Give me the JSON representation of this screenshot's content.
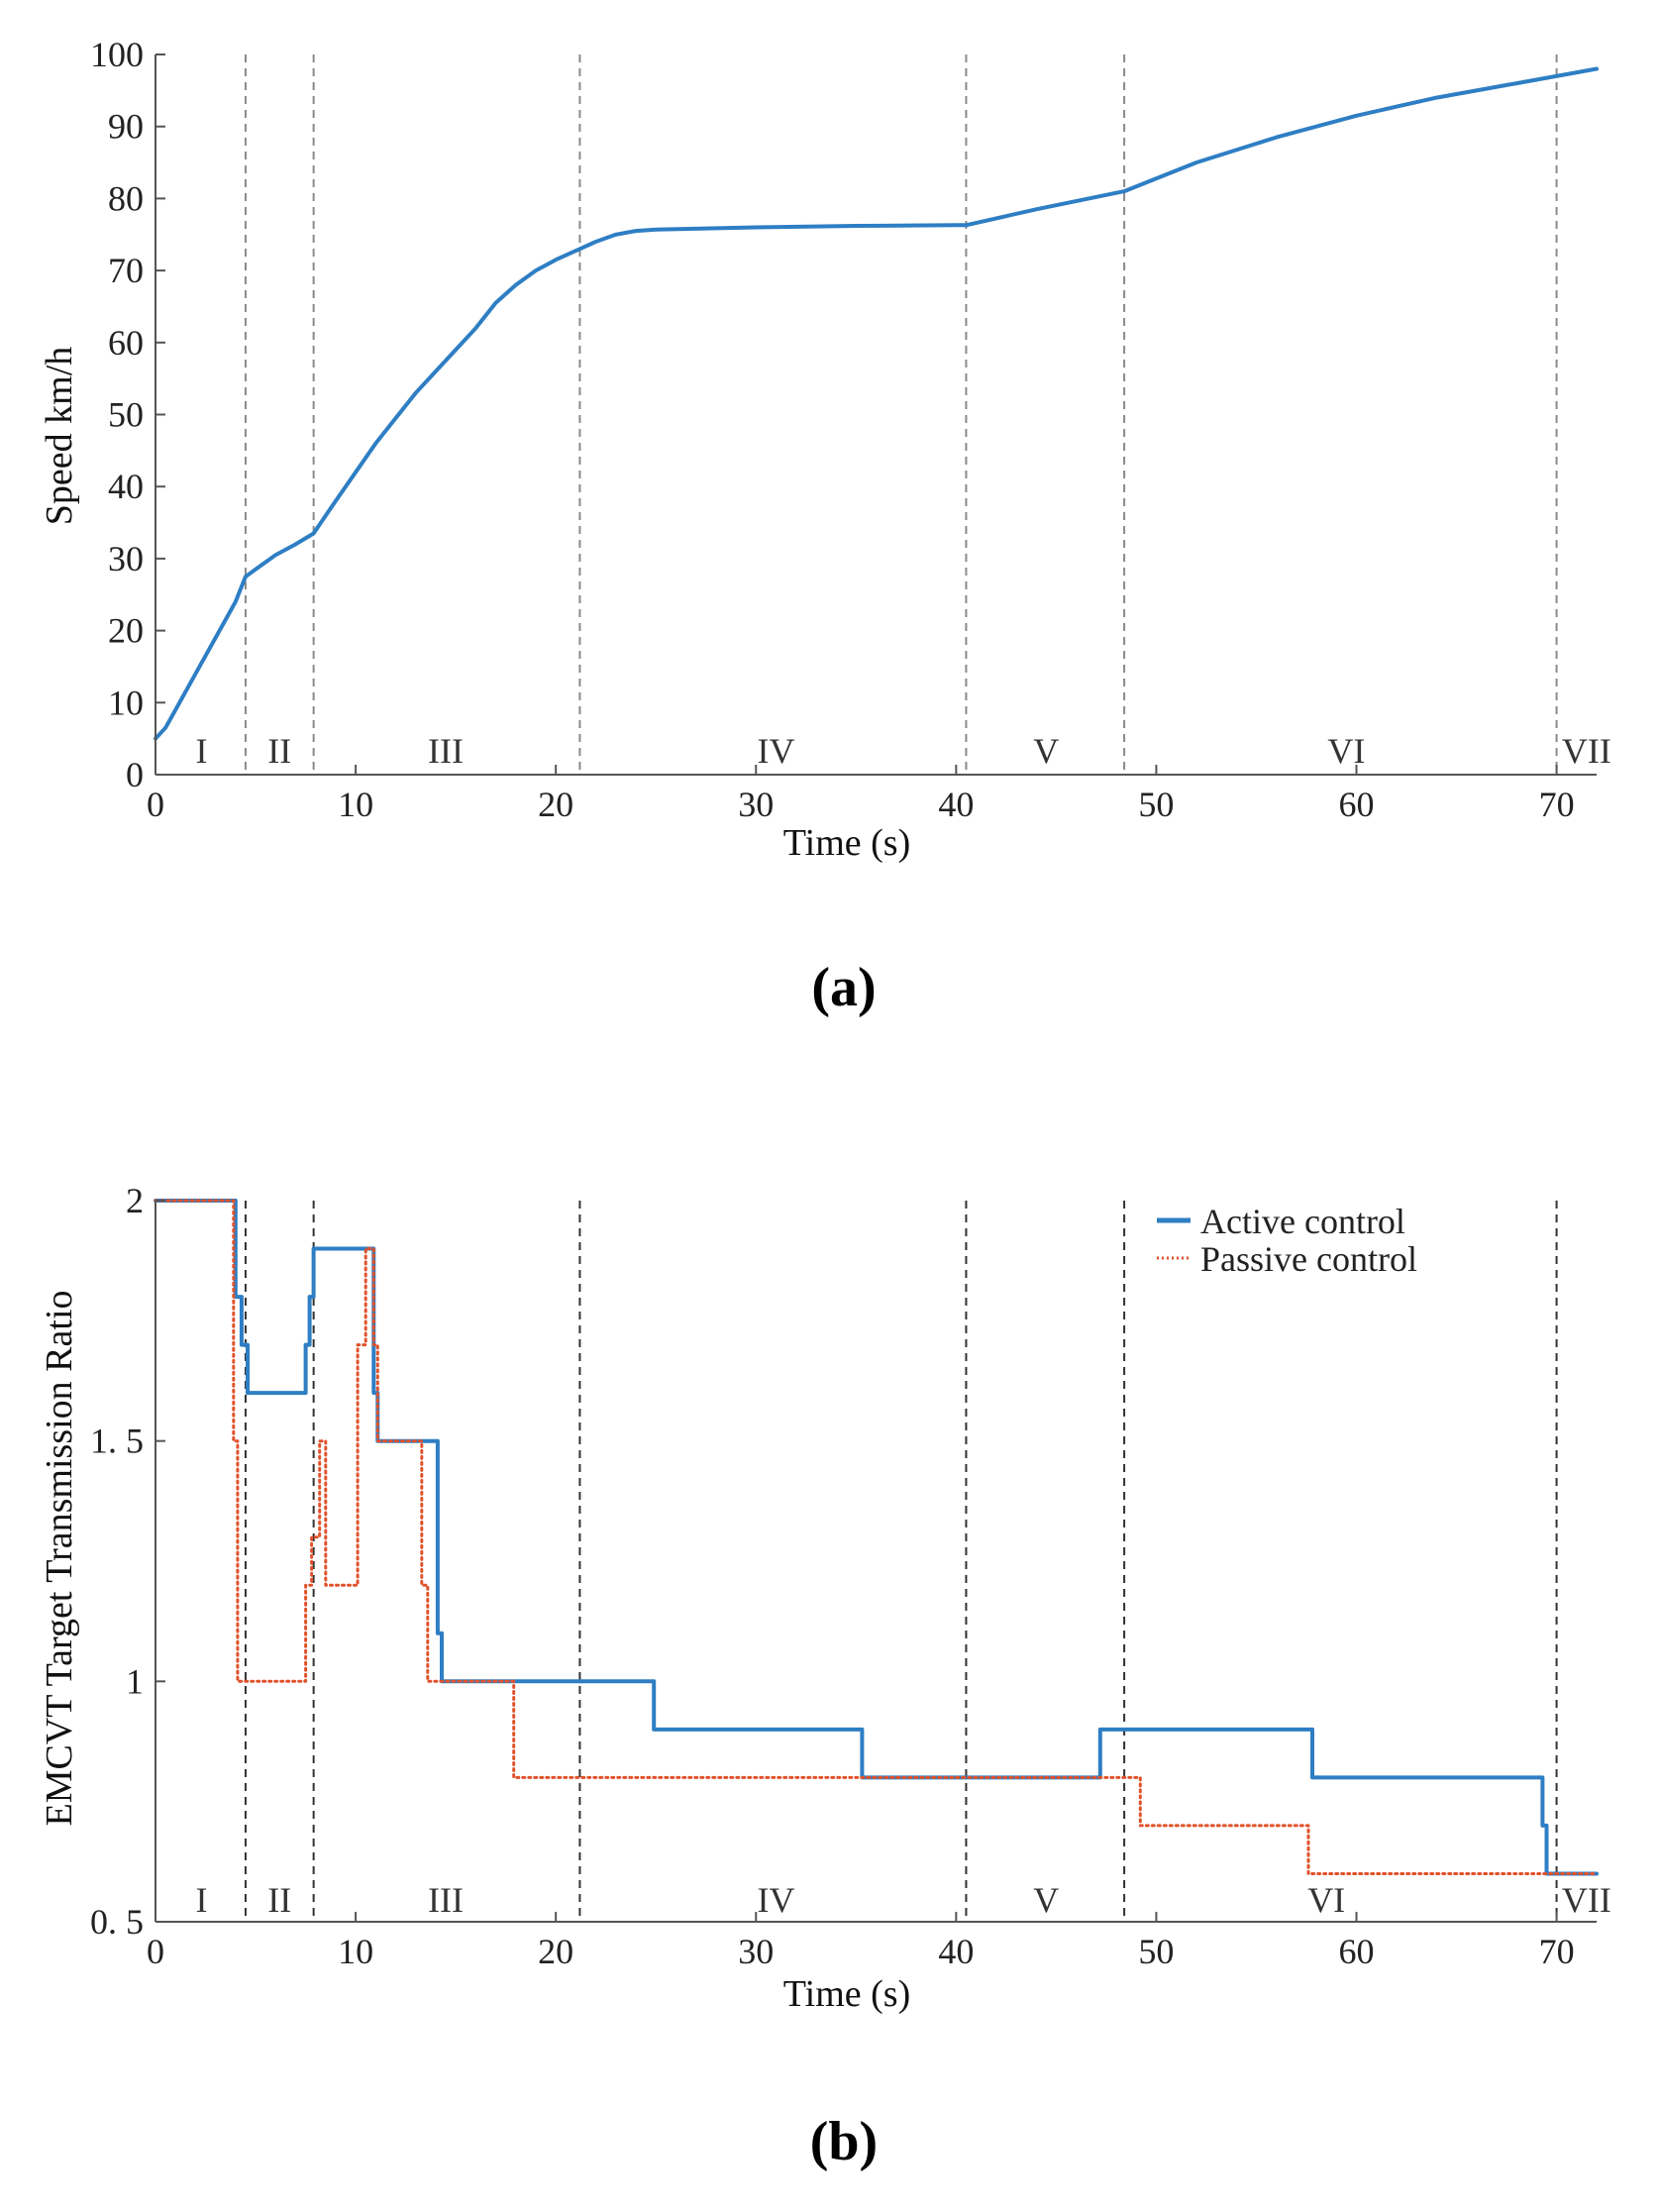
{
  "chart_data": [
    {
      "id": "a",
      "type": "line",
      "panel_label": "(a)",
      "xlabel": "Time (s)",
      "ylabel": "Speed km/h",
      "xlim": [
        0,
        72
      ],
      "ylim": [
        0,
        100
      ],
      "xticks": [
        0,
        10,
        20,
        30,
        40,
        50,
        60,
        70
      ],
      "yticks": [
        0,
        10,
        20,
        30,
        40,
        50,
        60,
        70,
        80,
        90,
        100
      ],
      "ytick_labels": [
        "0",
        "10",
        "20",
        "30",
        "40",
        "50",
        "60",
        "70",
        "80",
        "90",
        "100"
      ],
      "phase_boundaries": [
        4.5,
        7.9,
        21.2,
        40.5,
        48.4,
        70.0
      ],
      "phases": [
        {
          "label": "I",
          "x": 2.3
        },
        {
          "label": "II",
          "x": 6.2
        },
        {
          "label": "III",
          "x": 14.5
        },
        {
          "label": "IV",
          "x": 31.0
        },
        {
          "label": "V",
          "x": 44.5
        },
        {
          "label": "VI",
          "x": 59.5
        },
        {
          "label": "VII",
          "x": 71.5
        }
      ],
      "series": [
        {
          "name": "Speed",
          "color": "#2e7ec4",
          "style": "solid",
          "x": [
            0,
            0.5,
            1,
            2,
            3,
            4,
            4.5,
            5,
            6,
            7,
            7.9,
            9,
            10,
            11,
            12,
            13,
            14,
            15,
            16,
            17,
            18,
            19,
            20,
            21.2,
            22,
            23,
            24,
            25,
            30,
            35,
            40,
            40.5,
            44,
            48.4,
            52,
            56,
            60,
            64,
            68,
            72
          ],
          "y": [
            5,
            6.5,
            9,
            14,
            19,
            24,
            27.5,
            28.5,
            30.5,
            32,
            33.5,
            38,
            42,
            46,
            49.5,
            53,
            56,
            59,
            62,
            65.5,
            68,
            70,
            71.5,
            73,
            74,
            75,
            75.5,
            75.7,
            76,
            76.2,
            76.3,
            76.3,
            78.5,
            81,
            85,
            88.5,
            91.5,
            94,
            96,
            98
          ]
        }
      ]
    },
    {
      "id": "b",
      "type": "line",
      "panel_label": "(b)",
      "xlabel": "Time (s)",
      "ylabel": "EMCVT Target Transmission Ratio",
      "xlim": [
        0,
        72
      ],
      "ylim": [
        0.5,
        2
      ],
      "xticks": [
        0,
        10,
        20,
        30,
        40,
        50,
        60,
        70
      ],
      "yticks": [
        0.5,
        1,
        1.5,
        2
      ],
      "ytick_labels": [
        "0. 5",
        "1",
        "1. 5",
        "2"
      ],
      "phase_boundaries": [
        4.5,
        7.9,
        21.2,
        40.5,
        48.4,
        70.0
      ],
      "phases": [
        {
          "label": "I",
          "x": 2.3
        },
        {
          "label": "II",
          "x": 6.2
        },
        {
          "label": "III",
          "x": 14.5
        },
        {
          "label": "IV",
          "x": 31.0
        },
        {
          "label": "V",
          "x": 44.5
        },
        {
          "label": "VI",
          "x": 58.5
        },
        {
          "label": "VII",
          "x": 71.5
        }
      ],
      "legend": {
        "position": "top-right"
      },
      "series": [
        {
          "name": "Active control",
          "color": "#2e7ec4",
          "style": "solid",
          "x": [
            0,
            4,
            4,
            4.3,
            4.3,
            4.6,
            4.6,
            4.8,
            4.8,
            7.5,
            7.5,
            7.7,
            7.7,
            7.9,
            7.9,
            10.9,
            10.9,
            11.1,
            11.1,
            14.1,
            14.1,
            14.3,
            14.3,
            24.9,
            24.9,
            35.3,
            35.3,
            47.2,
            47.2,
            57.8,
            57.8,
            69.3,
            69.3,
            69.5,
            69.5,
            72
          ],
          "y": [
            2,
            2,
            1.8,
            1.8,
            1.7,
            1.7,
            1.6,
            1.6,
            1.6,
            1.6,
            1.7,
            1.7,
            1.8,
            1.8,
            1.9,
            1.9,
            1.6,
            1.6,
            1.5,
            1.5,
            1.1,
            1.1,
            1.0,
            1.0,
            0.9,
            0.9,
            0.8,
            0.8,
            0.9,
            0.9,
            0.8,
            0.8,
            0.7,
            0.7,
            0.6,
            0.6
          ]
        },
        {
          "name": "Passive control",
          "color": "#e0522b",
          "style": "dotted",
          "x": [
            0,
            3.9,
            3.9,
            4.1,
            4.1,
            4.4,
            4.4,
            7.5,
            7.5,
            7.8,
            7.8,
            8.2,
            8.2,
            8.5,
            8.5,
            10.1,
            10.1,
            10.5,
            10.5,
            10.9,
            10.9,
            11.1,
            11.1,
            13.3,
            13.3,
            13.6,
            13.6,
            14.3,
            14.3,
            17.9,
            17.9,
            48.9,
            48.9,
            49.2,
            49.2,
            57.6,
            57.6,
            72
          ],
          "y": [
            2,
            2,
            1.5,
            1.5,
            1.0,
            1.0,
            1.0,
            1.0,
            1.2,
            1.2,
            1.3,
            1.3,
            1.5,
            1.5,
            1.2,
            1.2,
            1.7,
            1.7,
            1.9,
            1.9,
            1.7,
            1.7,
            1.5,
            1.5,
            1.2,
            1.2,
            1.0,
            1.0,
            1.0,
            1.0,
            0.8,
            0.8,
            0.8,
            0.8,
            0.7,
            0.7,
            0.6,
            0.6
          ]
        }
      ]
    }
  ]
}
